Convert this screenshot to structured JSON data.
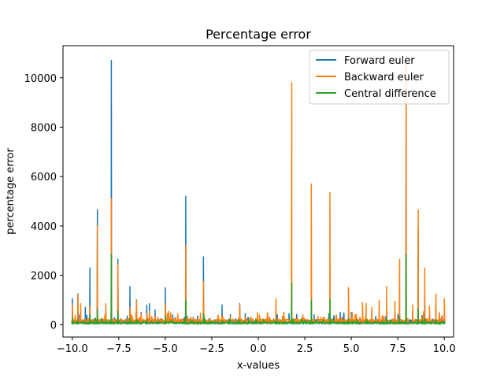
{
  "chart_data": {
    "type": "line",
    "title": "Percentage error",
    "xlabel": "x-values",
    "ylabel": "percentage error",
    "xlim": [
      -10.5,
      10.5
    ],
    "ylim": [
      -500,
      11300
    ],
    "xticks": [
      -10.0,
      -7.5,
      -5.0,
      -2.5,
      0.0,
      2.5,
      5.0,
      7.5,
      10.0
    ],
    "xtick_labels": [
      "−10.0",
      "−7.5",
      "−5.0",
      "−2.5",
      "0.0",
      "2.5",
      "5.0",
      "7.5",
      "10.0"
    ],
    "yticks": [
      0,
      2000,
      4000,
      6000,
      8000,
      10000
    ],
    "ytick_labels": [
      "0",
      "2000",
      "4000",
      "6000",
      "8000",
      "10000"
    ],
    "grid": false,
    "legend_position": "upper-right",
    "series": [
      {
        "name": "Forward euler",
        "color": "#1f77b4",
        "baseline": 120,
        "spikes": [
          [
            -10.0,
            1050
          ],
          [
            -9.7,
            1250
          ],
          [
            -9.3,
            700
          ],
          [
            -9.05,
            2300
          ],
          [
            -8.65,
            4650
          ],
          [
            -8.2,
            600
          ],
          [
            -7.9,
            10700
          ],
          [
            -7.55,
            2650
          ],
          [
            -6.9,
            1550
          ],
          [
            -6.55,
            1000
          ],
          [
            -6.3,
            500
          ],
          [
            -6.0,
            800
          ],
          [
            -5.85,
            850
          ],
          [
            -5.55,
            600
          ],
          [
            -5.0,
            1500
          ],
          [
            -4.6,
            400
          ],
          [
            -3.9,
            5200
          ],
          [
            -3.5,
            300
          ],
          [
            -2.95,
            2750
          ],
          [
            -2.6,
            250
          ],
          [
            -1.95,
            800
          ],
          [
            -1.5,
            400
          ],
          [
            -1.0,
            850
          ],
          [
            -0.7,
            450
          ],
          [
            1.0,
            400
          ],
          [
            1.65,
            450
          ],
          [
            2.4,
            350
          ],
          [
            3.0,
            400
          ],
          [
            3.8,
            450
          ],
          [
            4.4,
            500
          ],
          [
            5.0,
            500
          ],
          [
            5.6,
            600
          ],
          [
            6.1,
            450
          ],
          [
            6.9,
            600
          ],
          [
            7.35,
            500
          ],
          [
            7.6,
            450
          ],
          [
            7.95,
            10750
          ],
          [
            8.3,
            550
          ],
          [
            8.6,
            3850
          ],
          [
            8.95,
            1100
          ],
          [
            9.2,
            500
          ],
          [
            9.55,
            850
          ],
          [
            10.0,
            600
          ]
        ]
      },
      {
        "name": "Backward euler",
        "color": "#ff7f0e",
        "baseline": 140,
        "spikes": [
          [
            -10.0,
            800
          ],
          [
            -9.7,
            1200
          ],
          [
            -9.55,
            850
          ],
          [
            -9.05,
            750
          ],
          [
            -8.65,
            4000
          ],
          [
            -8.2,
            850
          ],
          [
            -7.9,
            5100
          ],
          [
            -7.55,
            2450
          ],
          [
            -6.9,
            700
          ],
          [
            -6.55,
            950
          ],
          [
            -6.3,
            450
          ],
          [
            -6.0,
            450
          ],
          [
            -5.85,
            550
          ],
          [
            -5.55,
            350
          ],
          [
            -5.0,
            850
          ],
          [
            -4.6,
            250
          ],
          [
            -3.9,
            3200
          ],
          [
            -3.5,
            250
          ],
          [
            -2.95,
            1750
          ],
          [
            -2.6,
            200
          ],
          [
            -1.95,
            350
          ],
          [
            -1.5,
            300
          ],
          [
            -1.0,
            800
          ],
          [
            -0.7,
            300
          ],
          [
            -0.1,
            150
          ],
          [
            0.5,
            450
          ],
          [
            0.95,
            1050
          ],
          [
            1.3,
            350
          ],
          [
            1.8,
            9800
          ],
          [
            2.1,
            300
          ],
          [
            2.4,
            400
          ],
          [
            2.85,
            5700
          ],
          [
            3.2,
            350
          ],
          [
            3.55,
            300
          ],
          [
            3.85,
            5350
          ],
          [
            4.2,
            400
          ],
          [
            4.5,
            300
          ],
          [
            4.85,
            1500
          ],
          [
            5.2,
            400
          ],
          [
            5.6,
            900
          ],
          [
            5.8,
            850
          ],
          [
            6.1,
            700
          ],
          [
            6.5,
            1000
          ],
          [
            6.9,
            1550
          ],
          [
            7.35,
            950
          ],
          [
            7.6,
            2650
          ],
          [
            7.95,
            10700
          ],
          [
            8.3,
            800
          ],
          [
            8.6,
            4650
          ],
          [
            8.95,
            2300
          ],
          [
            9.2,
            750
          ],
          [
            9.55,
            1250
          ],
          [
            10.0,
            1050
          ]
        ]
      },
      {
        "name": "Central difference",
        "color": "#2ca02c",
        "baseline": 70,
        "spikes": [
          [
            -10.0,
            300
          ],
          [
            -9.7,
            200
          ],
          [
            -9.05,
            400
          ],
          [
            -8.65,
            650
          ],
          [
            -8.2,
            200
          ],
          [
            -7.9,
            2850
          ],
          [
            -7.55,
            550
          ],
          [
            -6.9,
            250
          ],
          [
            -6.55,
            200
          ],
          [
            -6.0,
            200
          ],
          [
            -5.0,
            350
          ],
          [
            -3.9,
            1000
          ],
          [
            -2.95,
            450
          ],
          [
            -1.95,
            150
          ],
          [
            -1.0,
            200
          ],
          [
            0.95,
            200
          ],
          [
            1.8,
            1700
          ],
          [
            2.85,
            1000
          ],
          [
            3.85,
            1050
          ],
          [
            4.85,
            250
          ],
          [
            5.85,
            200
          ],
          [
            6.9,
            300
          ],
          [
            7.6,
            300
          ],
          [
            7.95,
            2850
          ],
          [
            8.6,
            650
          ],
          [
            8.95,
            250
          ],
          [
            9.55,
            200
          ],
          [
            10.0,
            150
          ]
        ]
      }
    ]
  }
}
